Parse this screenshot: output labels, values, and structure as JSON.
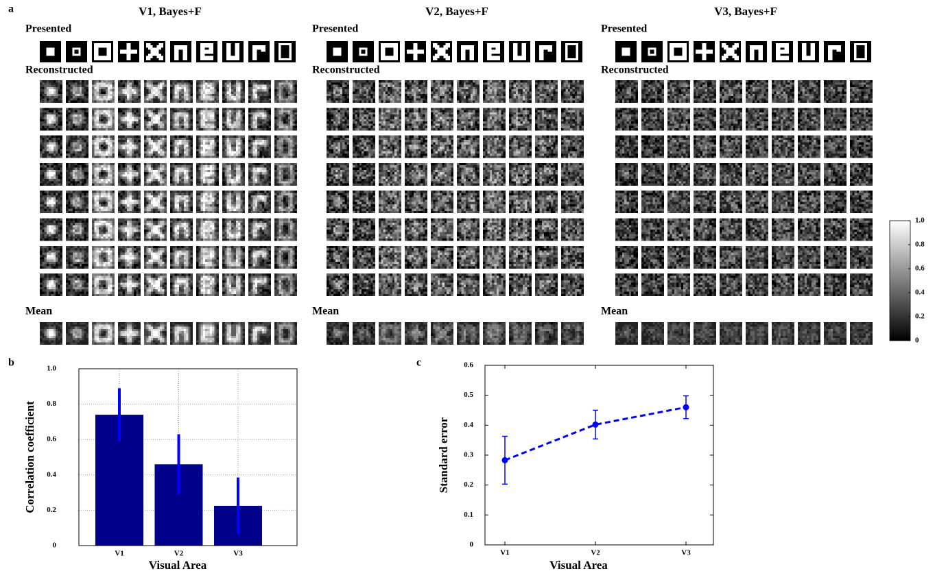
{
  "panel_a": {
    "label": "a",
    "grids": [
      {
        "title": "V1, Bayes+F",
        "presented": "Presented",
        "reconstructed": "Reconstructed",
        "mean": "Mean"
      },
      {
        "title": "V2, Bayes+F",
        "presented": "Presented",
        "reconstructed": "Reconstructed",
        "mean": "Mean"
      },
      {
        "title": "V3, Bayes+F",
        "presented": "Presented",
        "reconstructed": "Reconstructed",
        "mean": "Mean"
      }
    ],
    "colorbar": {
      "ylim": [
        0,
        1
      ],
      "yticks": [
        0,
        0.2,
        0.4,
        0.6,
        0.8,
        {
          "value": 1,
          "label": "1.0"
        }
      ]
    }
  },
  "chart_data": [
    {
      "type": "bar",
      "panel_label": "b",
      "categories": [
        "V1",
        "V2",
        "V3"
      ],
      "values": [
        0.74,
        0.46,
        0.225
      ],
      "errors": [
        0.15,
        0.17,
        0.16
      ],
      "color": "#00008b",
      "error_color": "#0000ff",
      "xlabel": "Visual Area",
      "ylabel": "Correlation coefficient",
      "ylim": [
        0,
        1
      ],
      "yticks": [
        0,
        0.2,
        0.4,
        0.6,
        0.8,
        {
          "value": 1,
          "label": "1.0"
        }
      ],
      "grid": true
    },
    {
      "type": "line",
      "panel_label": "c",
      "categories": [
        "V1",
        "V2",
        "V3"
      ],
      "values": [
        0.283,
        0.402,
        0.46
      ],
      "errors": [
        0.08,
        0.048,
        0.038
      ],
      "color": "#0000ff",
      "xlabel": "Visual Area",
      "ylabel": "Standard error",
      "ylim": [
        0,
        0.6
      ],
      "yticks": [
        0,
        0.1,
        0.2,
        0.3,
        0.4,
        0.5,
        0.6
      ],
      "grid": false
    }
  ]
}
